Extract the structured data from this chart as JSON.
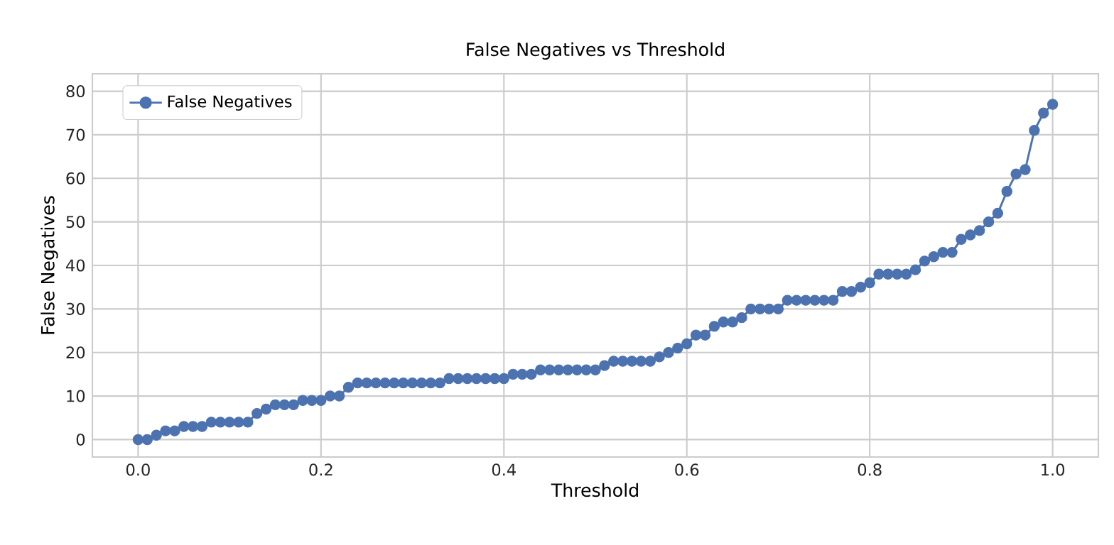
{
  "chart_data": {
    "type": "line",
    "title": "False Negatives vs Threshold",
    "xlabel": "Threshold",
    "ylabel": "False Negatives",
    "x": [
      0.0,
      0.01,
      0.02,
      0.03,
      0.04,
      0.05,
      0.06,
      0.07,
      0.08,
      0.09,
      0.1,
      0.11,
      0.12,
      0.13,
      0.14,
      0.15,
      0.16,
      0.17,
      0.18,
      0.19,
      0.2,
      0.21,
      0.22,
      0.23,
      0.24,
      0.25,
      0.26,
      0.27,
      0.28,
      0.29,
      0.3,
      0.31,
      0.32,
      0.33,
      0.34,
      0.35,
      0.36,
      0.37,
      0.38,
      0.39,
      0.4,
      0.41,
      0.42,
      0.43,
      0.44,
      0.45,
      0.46,
      0.47,
      0.48,
      0.49,
      0.5,
      0.51,
      0.52,
      0.53,
      0.54,
      0.55,
      0.56,
      0.57,
      0.58,
      0.59,
      0.6,
      0.61,
      0.62,
      0.63,
      0.64,
      0.65,
      0.66,
      0.67,
      0.68,
      0.69,
      0.7,
      0.71,
      0.72,
      0.73,
      0.74,
      0.75,
      0.76,
      0.77,
      0.78,
      0.79,
      0.8,
      0.81,
      0.82,
      0.83,
      0.84,
      0.85,
      0.86,
      0.87,
      0.88,
      0.89,
      0.9,
      0.91,
      0.92,
      0.93,
      0.94,
      0.95,
      0.96,
      0.97,
      0.98,
      0.99,
      1.0
    ],
    "series": [
      {
        "name": "False Negatives",
        "color": "#4c72b0",
        "values": [
          0,
          0,
          1,
          2,
          2,
          3,
          3,
          3,
          4,
          4,
          4,
          4,
          4,
          6,
          7,
          8,
          8,
          8,
          9,
          9,
          9,
          10,
          10,
          12,
          13,
          13,
          13,
          13,
          13,
          13,
          13,
          13,
          13,
          13,
          14,
          14,
          14,
          14,
          14,
          14,
          14,
          15,
          15,
          15,
          16,
          16,
          16,
          16,
          16,
          16,
          16,
          17,
          18,
          18,
          18,
          18,
          18,
          19,
          20,
          21,
          22,
          24,
          24,
          26,
          27,
          27,
          28,
          30,
          30,
          30,
          30,
          32,
          32,
          32,
          32,
          32,
          32,
          34,
          34,
          35,
          36,
          38,
          38,
          38,
          38,
          39,
          41,
          42,
          43,
          43,
          46,
          47,
          48,
          50,
          52,
          57,
          61,
          62,
          71,
          75,
          77
        ]
      }
    ],
    "xlim": [
      -0.05,
      1.05
    ],
    "ylim": [
      -4,
      84
    ],
    "xticks": [
      {
        "value": 0,
        "label": "0.0"
      },
      0.2,
      0.4,
      0.6,
      0.8,
      {
        "value": 1,
        "label": "1.0"
      }
    ],
    "yticks": [
      0,
      10,
      20,
      30,
      40,
      50,
      60,
      70,
      80
    ],
    "grid": true,
    "legend": "top left",
    "marker": "circle",
    "line_style": "solid"
  }
}
